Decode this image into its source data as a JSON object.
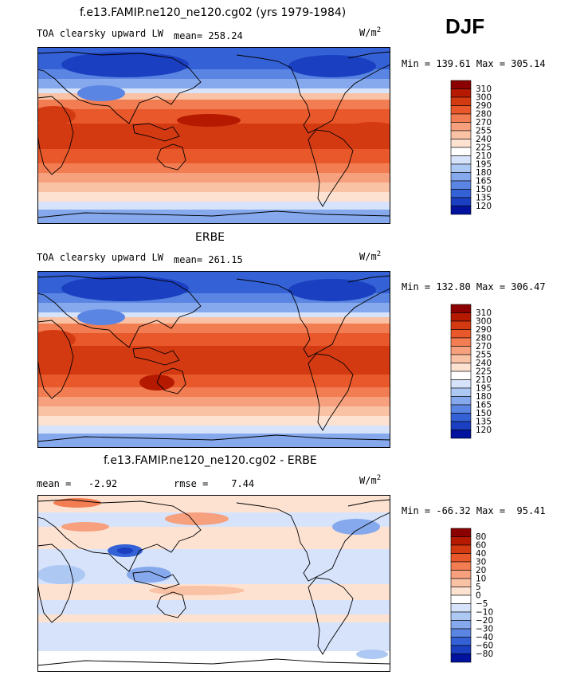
{
  "season": "DJF",
  "units": "W/m",
  "units_exp": "2",
  "panels": [
    {
      "title": "f.e13.FAMIP.ne120_ne120.cg02 (yrs 1979-1984)",
      "left_label": "TOA clearsky upward LW",
      "stat1": "mean= 258.24",
      "stat2": "",
      "minmax": "Min = 139.61 Max = 305.14"
    },
    {
      "title": "ERBE",
      "left_label": "TOA clearsky upward LW",
      "stat1": "mean= 261.15",
      "stat2": "",
      "minmax": "Min = 132.80 Max = 306.47"
    },
    {
      "title": "f.e13.FAMIP.ne120_ne120.cg02 - ERBE",
      "left_label": "",
      "stat1": "mean =   -2.92",
      "stat2": "rmse =    7.44",
      "minmax": "Min = -66.32 Max =  95.41"
    }
  ],
  "colorbars": [
    {
      "labels": [
        "310",
        "300",
        "290",
        "280",
        "270",
        "255",
        "240",
        "225",
        "210",
        "195",
        "180",
        "165",
        "150",
        "135",
        "120"
      ],
      "colors": [
        "#8b0000",
        "#b51a00",
        "#d43a12",
        "#e8582a",
        "#f27d52",
        "#f7a07e",
        "#fac2a5",
        "#fde2d2",
        "#ffffff",
        "#d6e3fb",
        "#aec8f4",
        "#86a8ec",
        "#5b85e2",
        "#3461d6",
        "#1a3fc0",
        "#00129e"
      ]
    },
    {
      "labels": [
        "310",
        "300",
        "290",
        "280",
        "270",
        "255",
        "240",
        "225",
        "210",
        "195",
        "180",
        "165",
        "150",
        "135",
        "120"
      ],
      "colors": [
        "#8b0000",
        "#b51a00",
        "#d43a12",
        "#e8582a",
        "#f27d52",
        "#f7a07e",
        "#fac2a5",
        "#fde2d2",
        "#ffffff",
        "#d6e3fb",
        "#aec8f4",
        "#86a8ec",
        "#5b85e2",
        "#3461d6",
        "#1a3fc0",
        "#00129e"
      ]
    },
    {
      "labels": [
        "80",
        "60",
        "40",
        "30",
        "20",
        "10",
        "5",
        "0",
        "−5",
        "−10",
        "−20",
        "−30",
        "−40",
        "−60",
        "−80"
      ],
      "colors": [
        "#8b0000",
        "#b51a00",
        "#d43a12",
        "#e8582a",
        "#f27d52",
        "#f7a07e",
        "#fac2a5",
        "#fde2d2",
        "#ffffff",
        "#d6e3fb",
        "#aec8f4",
        "#86a8ec",
        "#5b85e2",
        "#3461d6",
        "#1a3fc0",
        "#00129e"
      ]
    }
  ],
  "map_colors": {
    "deep_red": "#b51a00",
    "red": "#d43a12",
    "orange": "#e8582a",
    "salmon": "#f27d52",
    "light_salmon": "#f7a07e",
    "peach": "#fac2a5",
    "pale": "#fde2d2",
    "white": "#ffffff",
    "pale_blue": "#d6e3fb",
    "light_blue": "#aec8f4",
    "mid_blue": "#86a8ec",
    "blue": "#5b85e2",
    "strong_blue": "#3461d6",
    "dark_blue": "#1a3fc0"
  }
}
